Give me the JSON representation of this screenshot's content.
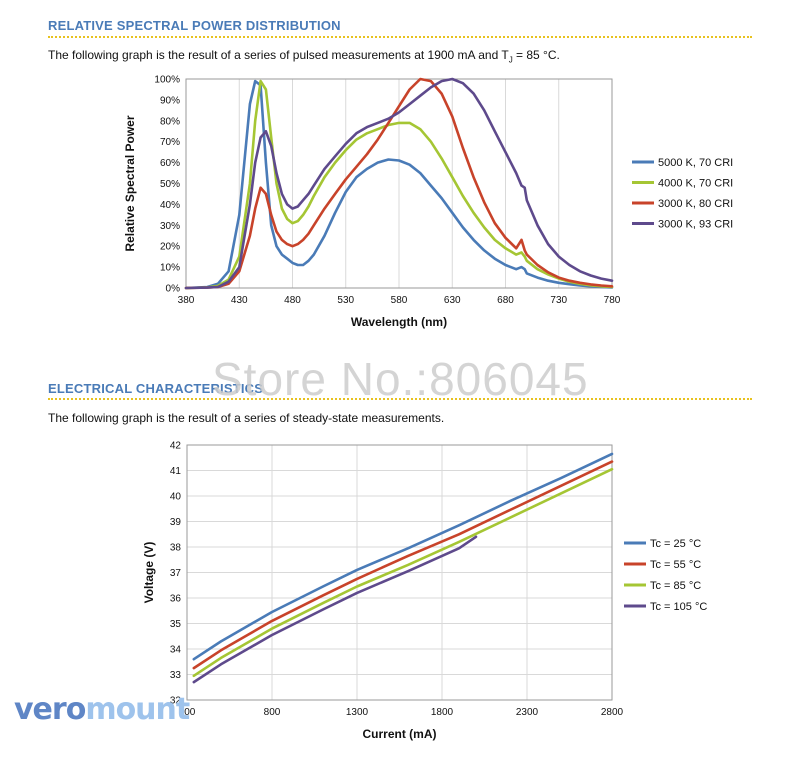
{
  "sections": {
    "spectral": {
      "title": "RELATIVE SPECTRAL POWER DISTRIBUTION",
      "description_prefix": "The following graph is the result of a series of pulsed measurements at 1900 mA and T",
      "description_sub": "J",
      "description_suffix": " = 85 °C."
    },
    "electrical": {
      "title": "ELECTRICAL CHARACTERISTICS",
      "description": "The following graph is the result of a series of steady-state measurements."
    }
  },
  "watermark": "Store No.:806045",
  "logo": {
    "part1": "vero",
    "part2": "mount"
  },
  "chart_data": [
    {
      "type": "line",
      "xlabel": "Wavelength (nm)",
      "ylabel": "Relative Spectral Power",
      "xlim": [
        380,
        780
      ],
      "ylim": [
        0,
        100
      ],
      "xticks": [
        380,
        430,
        480,
        530,
        580,
        630,
        680,
        730,
        780
      ],
      "yticks": [
        0,
        10,
        20,
        30,
        40,
        50,
        60,
        70,
        80,
        90,
        100
      ],
      "ytick_suffix": "%",
      "grid": "vertical",
      "legend": "right",
      "series": [
        {
          "name": "5000 K, 70 CRI",
          "color": "#4a7bb7",
          "x": [
            380,
            400,
            410,
            420,
            430,
            440,
            445,
            450,
            455,
            460,
            465,
            470,
            475,
            480,
            485,
            490,
            495,
            500,
            510,
            520,
            530,
            540,
            550,
            560,
            570,
            580,
            590,
            600,
            610,
            620,
            630,
            640,
            650,
            660,
            670,
            680,
            690,
            695,
            698,
            700,
            710,
            720,
            730,
            740,
            750,
            760,
            770,
            780
          ],
          "y": [
            0,
            0.5,
            2,
            8,
            35,
            88,
            99,
            97,
            60,
            30,
            20,
            16,
            14,
            12,
            11,
            11,
            13,
            16,
            25,
            36,
            46,
            53,
            57,
            60,
            61.5,
            61,
            59,
            55,
            49,
            43,
            36,
            29,
            23,
            18,
            14,
            11,
            9,
            10,
            9,
            7,
            5,
            3.5,
            2.5,
            1.8,
            1.2,
            0.8,
            0.5,
            0.3
          ]
        },
        {
          "name": "4000 K, 70 CRI",
          "color": "#a5c634",
          "x": [
            380,
            400,
            410,
            420,
            430,
            440,
            445,
            450,
            455,
            460,
            465,
            470,
            475,
            480,
            485,
            490,
            495,
            500,
            510,
            520,
            530,
            540,
            550,
            560,
            570,
            580,
            590,
            600,
            610,
            620,
            630,
            640,
            650,
            660,
            670,
            680,
            690,
            695,
            698,
            700,
            710,
            720,
            730,
            740,
            750,
            760,
            770,
            780
          ],
          "y": [
            0,
            0.3,
            1,
            4,
            15,
            50,
            80,
            99,
            95,
            72,
            50,
            38,
            33,
            31,
            32,
            35,
            39,
            44,
            53,
            60,
            66,
            71,
            74,
            76,
            78,
            79,
            79,
            76,
            70,
            62,
            53,
            44,
            36,
            29,
            23,
            19,
            16,
            17,
            15,
            13,
            9,
            6.5,
            4.5,
            3,
            2,
            1.3,
            0.8,
            0.5
          ]
        },
        {
          "name": "3000 K, 80 CRI",
          "color": "#c8432a",
          "x": [
            380,
            400,
            410,
            420,
            430,
            440,
            445,
            450,
            455,
            460,
            465,
            470,
            475,
            480,
            485,
            490,
            495,
            500,
            510,
            520,
            530,
            540,
            550,
            560,
            570,
            580,
            590,
            600,
            610,
            620,
            630,
            640,
            650,
            660,
            670,
            680,
            690,
            695,
            698,
            700,
            710,
            720,
            730,
            740,
            750,
            760,
            770,
            780
          ],
          "y": [
            0,
            0.2,
            0.5,
            2,
            8,
            25,
            38,
            48,
            45,
            35,
            27,
            23,
            21,
            20,
            21,
            23,
            26,
            30,
            38,
            45,
            52,
            58,
            64,
            71,
            79,
            87,
            95,
            100,
            99,
            93,
            82,
            67,
            53,
            41,
            31,
            24,
            19,
            23,
            18,
            16,
            11,
            7.5,
            5,
            3.5,
            2.5,
            1.7,
            1.2,
            0.8
          ]
        },
        {
          "name": "3000 K, 93 CRI",
          "color": "#5e4a8c",
          "x": [
            380,
            400,
            410,
            420,
            430,
            440,
            445,
            450,
            455,
            460,
            465,
            470,
            475,
            480,
            485,
            490,
            495,
            500,
            510,
            520,
            530,
            540,
            550,
            560,
            570,
            580,
            590,
            600,
            610,
            620,
            630,
            640,
            650,
            660,
            670,
            680,
            690,
            695,
            698,
            700,
            710,
            720,
            730,
            740,
            750,
            760,
            770,
            780
          ],
          "y": [
            0,
            0.2,
            0.5,
            3,
            10,
            40,
            60,
            72,
            75,
            68,
            55,
            45,
            40,
            38,
            39,
            42,
            45,
            49,
            57,
            63,
            69,
            74,
            77,
            79,
            81,
            84,
            88,
            92,
            96,
            99,
            100,
            98,
            93,
            85,
            75,
            65,
            55,
            49,
            48,
            42,
            30,
            21,
            15,
            11,
            8,
            6,
            4.5,
            3.5
          ]
        }
      ]
    },
    {
      "type": "line",
      "xlabel": "Current (mA)",
      "ylabel": "Voltage (V)",
      "xlim": [
        300,
        2800
      ],
      "ylim": [
        32,
        42
      ],
      "xticks": [
        300,
        800,
        1300,
        1800,
        2300,
        2800
      ],
      "yticks": [
        32,
        33,
        34,
        35,
        36,
        37,
        38,
        39,
        40,
        41,
        42
      ],
      "grid": "both",
      "legend": "right",
      "series": [
        {
          "name": "Tc = 25 °C",
          "color": "#4a7bb7",
          "x": [
            340,
            500,
            800,
            1100,
            1300,
            1600,
            1900,
            2200,
            2500,
            2800
          ],
          "y": [
            33.6,
            34.3,
            35.45,
            36.45,
            37.1,
            37.95,
            38.85,
            39.8,
            40.7,
            41.65
          ]
        },
        {
          "name": "Tc = 55 °C",
          "color": "#c8432a",
          "x": [
            340,
            500,
            800,
            1100,
            1300,
            1600,
            1900,
            2200,
            2500,
            2800
          ],
          "y": [
            33.25,
            33.95,
            35.1,
            36.1,
            36.75,
            37.65,
            38.5,
            39.45,
            40.4,
            41.35
          ]
        },
        {
          "name": "Tc = 85 °C",
          "color": "#a5c634",
          "x": [
            340,
            500,
            800,
            1100,
            1300,
            1600,
            1900,
            2200,
            2500,
            2800
          ],
          "y": [
            32.95,
            33.65,
            34.8,
            35.8,
            36.45,
            37.3,
            38.2,
            39.15,
            40.1,
            41.05
          ]
        },
        {
          "name": "Tc = 105 °C",
          "color": "#5e4a8c",
          "x": [
            340,
            500,
            800,
            1100,
            1300,
            1600,
            1900,
            2000
          ],
          "y": [
            32.7,
            33.4,
            34.55,
            35.55,
            36.2,
            37.05,
            37.95,
            38.4
          ]
        }
      ]
    }
  ]
}
